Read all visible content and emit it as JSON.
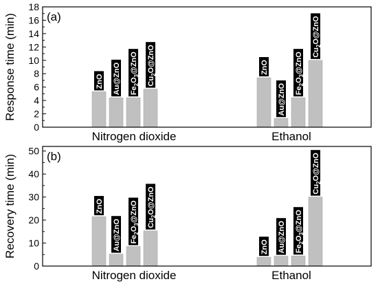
{
  "chart_data": [
    {
      "type": "bar",
      "panel_label": "(a)",
      "ylabel": "Response time (min)",
      "ylim": [
        0,
        18
      ],
      "yticks": [
        0,
        2,
        4,
        6,
        8,
        10,
        12,
        14,
        16,
        18
      ],
      "grid": false,
      "categories": [
        "Nitrogen dioxide",
        "Ethanol"
      ],
      "series": [
        {
          "name": "ZnO",
          "values": [
            5.3,
            7.4
          ]
        },
        {
          "name": "Au@ZnO",
          "values": [
            4.4,
            1.3
          ]
        },
        {
          "name": "Fe2O3@ZnO",
          "values": [
            4.4,
            4.4
          ]
        },
        {
          "name": "Cu2O@ZnO",
          "values": [
            5.7,
            10.0
          ]
        }
      ],
      "bar_color": "#c0c0c0",
      "label_background": "#000000",
      "label_text_color": "#ffffff"
    },
    {
      "type": "bar",
      "panel_label": "(b)",
      "ylabel": "Recovery time (min)",
      "ylim": [
        0,
        52
      ],
      "yticks": [
        0,
        10,
        20,
        30,
        40,
        50
      ],
      "grid": false,
      "categories": [
        "Nitrogen dioxide",
        "Ethanol"
      ],
      "series": [
        {
          "name": "ZnO",
          "values": [
            21.5,
            3.8
          ]
        },
        {
          "name": "Au@ZnO",
          "values": [
            5.2,
            4.3
          ]
        },
        {
          "name": "Fe2O3@ZnO",
          "values": [
            8.5,
            4.4
          ]
        },
        {
          "name": "Cu2O@ZnO",
          "values": [
            15.3,
            30.0
          ]
        }
      ],
      "bar_color": "#c0c0c0",
      "label_background": "#000000",
      "label_text_color": "#ffffff"
    }
  ]
}
